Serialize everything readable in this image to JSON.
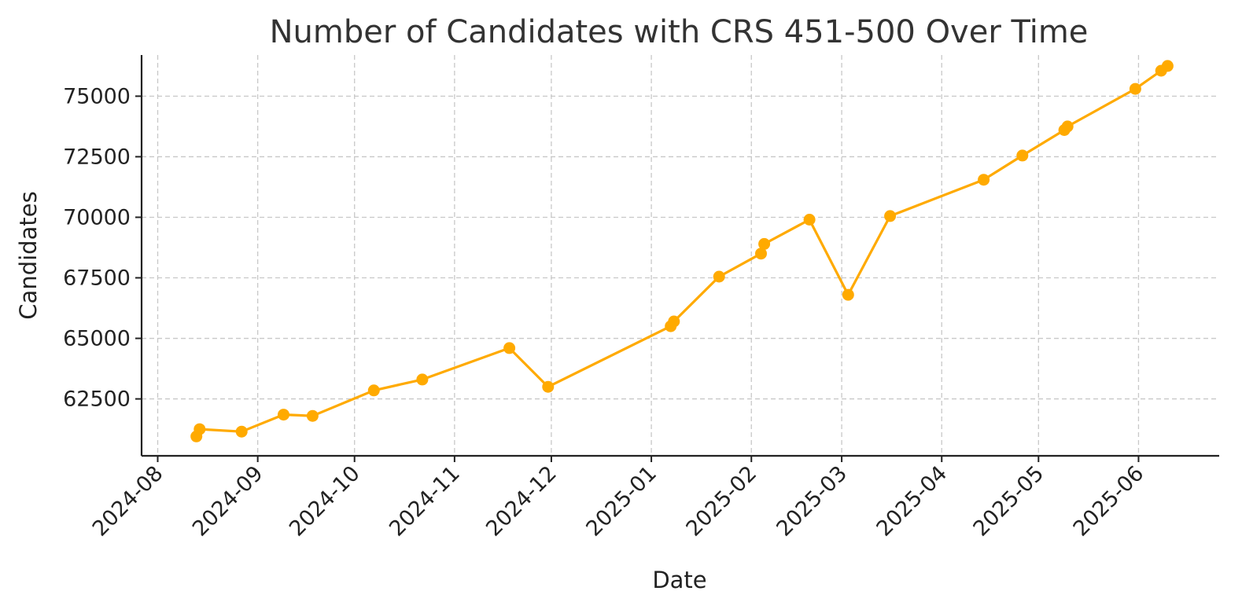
{
  "chart_data": {
    "type": "line",
    "title": "Number of Candidates with CRS 451-500 Over Time",
    "xlabel": "Date",
    "ylabel": "Candidates",
    "x_ticks": [
      "2024-08",
      "2024-09",
      "2024-10",
      "2024-11",
      "2024-12",
      "2025-01",
      "2025-02",
      "2025-03",
      "2025-04",
      "2025-05",
      "2025-06"
    ],
    "y_ticks": [
      62500,
      65000,
      67500,
      70000,
      72500,
      75000
    ],
    "xlim": [
      "2024-07-27",
      "2025-06-26"
    ],
    "ylim": [
      60150,
      76700
    ],
    "grid": true,
    "color": "#FFAA00",
    "series": [
      {
        "x": [
          "2024-08-13",
          "2024-08-14",
          "2024-08-27",
          "2024-09-09",
          "2024-09-18",
          "2024-10-07",
          "2024-10-22",
          "2024-11-18",
          "2024-11-30",
          "2025-01-07",
          "2025-01-08",
          "2025-01-22",
          "2025-02-04",
          "2025-02-05",
          "2025-02-19",
          "2025-03-03",
          "2025-03-16",
          "2025-04-14",
          "2025-04-26",
          "2025-05-09",
          "2025-05-10",
          "2025-05-31",
          "2025-06-08",
          "2025-06-10"
        ],
        "values": [
          60950,
          61250,
          61150,
          61850,
          61800,
          62850,
          63300,
          64600,
          63000,
          65500,
          65700,
          67550,
          68500,
          68900,
          69900,
          66800,
          70050,
          71550,
          72550,
          73600,
          73750,
          75300,
          76050,
          76250
        ]
      }
    ]
  }
}
